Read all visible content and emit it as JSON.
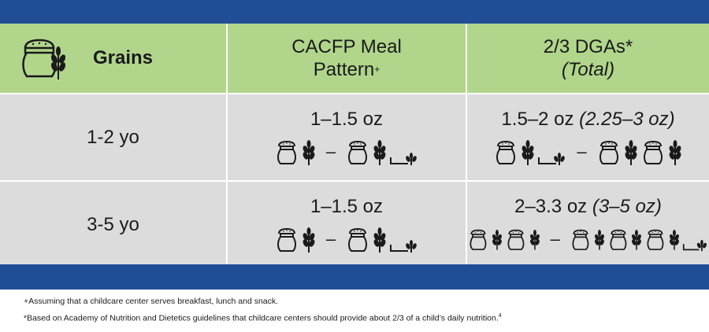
{
  "header": {
    "grains_label": "Grains",
    "col2_line1": "CACFP Meal",
    "col2_line2": "Pattern",
    "col2_mark": "+",
    "col3_line1": "2/3 DGAs*",
    "col3_line2": "(Total)"
  },
  "rows": [
    {
      "age": "1-2 yo",
      "cacfp": "1–1.5 oz",
      "dga": "1.5–2 oz",
      "dga_total": "(2.25–3 oz)"
    },
    {
      "age": "3-5 yo",
      "cacfp": "1–1.5 oz",
      "dga": "2–3.3 oz",
      "dga_total": "(3–5 oz)"
    }
  ],
  "dash": "–",
  "footnotes": {
    "plus": "+Assuming that a childcare center serves breakfast, lunch and snack.",
    "star": "*Based on Academy of Nutrition and Dietetics guidelines that childcare centers should provide about 2/3 of a child’s daily nutrition.",
    "star_ref": "4"
  },
  "colors": {
    "band": "#1f4e97",
    "header": "#b1d68b",
    "row": "#dcdcdc"
  },
  "icons": [
    "grain-sack-icon",
    "wheat-icon"
  ]
}
